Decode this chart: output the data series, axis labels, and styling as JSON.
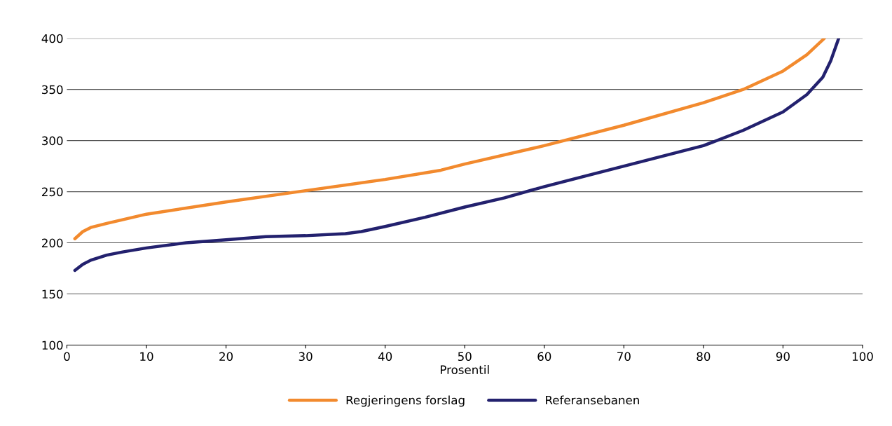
{
  "chart_data": {
    "type": "line",
    "xlabel": "Prosentil",
    "xlim": [
      0,
      100
    ],
    "xticks": [
      0,
      10,
      20,
      30,
      40,
      50,
      60,
      70,
      80,
      90,
      100
    ],
    "ylim": [
      100,
      400
    ],
    "yticks": [
      100,
      150,
      200,
      250,
      300,
      350,
      400
    ],
    "grid": "y",
    "legend": "bottom",
    "marker": "none",
    "line_style": "solid",
    "series": [
      {
        "name": "Regjeringens forslag",
        "color": "#f28a2e",
        "x": [
          1,
          2,
          3,
          5,
          10,
          20,
          30,
          40,
          47,
          50,
          60,
          70,
          80,
          85,
          90,
          93,
          95.2
        ],
        "values": [
          204,
          211,
          215,
          219,
          228,
          240,
          251,
          262,
          271,
          277,
          295,
          315,
          337,
          350,
          368,
          384,
          400
        ]
      },
      {
        "name": "Referansebanen",
        "color": "#23216e",
        "x": [
          1,
          2,
          3,
          5,
          7,
          10,
          15,
          20,
          25,
          30,
          35,
          37,
          40,
          45,
          50,
          55,
          60,
          70,
          80,
          85,
          90,
          93,
          95,
          96,
          97
        ],
        "values": [
          173,
          179,
          183,
          188,
          191,
          195,
          200,
          203,
          206,
          207,
          209,
          211,
          216,
          225,
          235,
          244,
          255,
          275,
          295,
          310,
          328,
          345,
          362,
          378,
          400
        ]
      }
    ]
  }
}
